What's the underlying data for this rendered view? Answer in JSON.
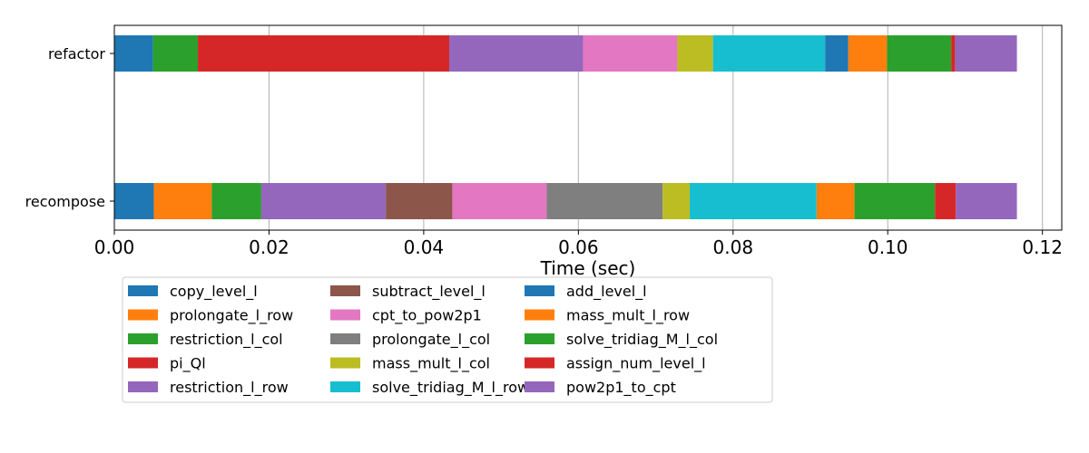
{
  "chart_data": {
    "type": "bar",
    "orientation": "horizontal",
    "stacked": true,
    "title": "",
    "xlabel": "Time (sec)",
    "ylabel": "",
    "xlim": [
      0.0,
      0.1225
    ],
    "xticks": [
      0.0,
      0.02,
      0.04,
      0.06,
      0.08,
      0.1,
      0.12
    ],
    "xtick_labels": [
      "0.00",
      "0.02",
      "0.04",
      "0.06",
      "0.08",
      "0.10",
      "0.12"
    ],
    "grid": "x",
    "legend_placement": "below-left",
    "categories": [
      "refactor",
      "recompose"
    ],
    "series": [
      {
        "name": "copy_level_l",
        "color": "#1f77b4",
        "values": [
          0.005,
          0.0051
        ]
      },
      {
        "name": "prolongate_l_row",
        "color": "#ff7f0e",
        "values": [
          0.0,
          0.0075
        ]
      },
      {
        "name": "restriction_l_col",
        "color": "#2ca02c",
        "values": [
          0.0058,
          0.0064
        ]
      },
      {
        "name": "pi_Ql",
        "color": "#d62728",
        "values": [
          0.0325,
          0.0
        ]
      },
      {
        "name": "restriction_l_row",
        "color": "#9467bd",
        "values": [
          0.0173,
          0.0161
        ]
      },
      {
        "name": "subtract_level_l",
        "color": "#8c564b",
        "values": [
          0.0,
          0.0086
        ]
      },
      {
        "name": "cpt_to_pow2p1",
        "color": "#e377c2",
        "values": [
          0.0122,
          0.0122
        ]
      },
      {
        "name": "prolongate_l_col",
        "color": "#7f7f7f",
        "values": [
          0.0,
          0.015
        ]
      },
      {
        "name": "mass_mult_l_col",
        "color": "#bcbd22",
        "values": [
          0.0046,
          0.0035
        ]
      },
      {
        "name": "solve_tridiag_M_l_row",
        "color": "#17becf",
        "values": [
          0.0145,
          0.0164
        ]
      },
      {
        "name": "add_level_l",
        "color": "#1f77b4",
        "values": [
          0.003,
          0.0
        ]
      },
      {
        "name": "mass_mult_l_row",
        "color": "#ff7f0e",
        "values": [
          0.005,
          0.0049
        ]
      },
      {
        "name": "solve_tridiag_M_l_col",
        "color": "#2ca02c",
        "values": [
          0.0083,
          0.0104
        ]
      },
      {
        "name": "assign_num_level_l",
        "color": "#d62728",
        "values": [
          0.0005,
          0.0027
        ]
      },
      {
        "name": "pow2p1_to_cpt",
        "color": "#9467bd",
        "values": [
          0.008,
          0.0079
        ]
      }
    ]
  }
}
